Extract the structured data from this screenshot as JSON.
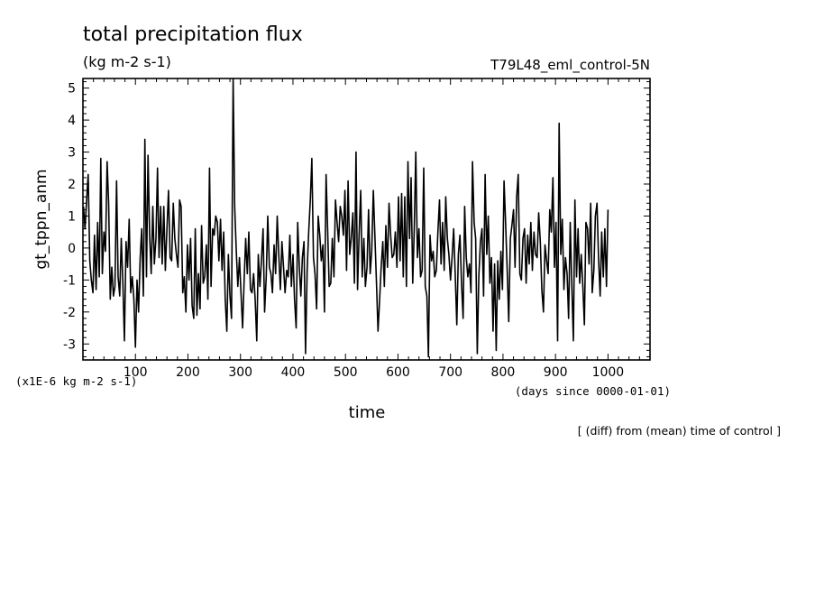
{
  "chart_data": {
    "type": "line",
    "title": "total precipitation flux",
    "units": "(kg m-2 s-1)",
    "case_label": "T79L48_eml_control-5N",
    "ylabel": "gt_tppn_anm",
    "xlabel": "time",
    "y_scale_note": "(x1E-6 kg m-2 s-1)",
    "x_units_note": "(days since 0000-01-01)",
    "footnote": "[ (diff) from (mean) time of control ]",
    "xlim": [
      0,
      1080
    ],
    "ylim": [
      -3.5,
      5.3
    ],
    "x_ticks": [
      100,
      200,
      300,
      400,
      500,
      600,
      700,
      800,
      900,
      1000
    ],
    "y_ticks": [
      -3,
      -2,
      -1,
      0,
      1,
      2,
      3,
      4,
      5
    ],
    "grid": false,
    "series": [
      {
        "color": "#000000",
        "x_start": 1,
        "x_step": 3,
        "values": [
          1.3,
          0.6,
          1.5,
          2.3,
          -0.4,
          -1.0,
          -1.4,
          0.4,
          -1.3,
          0.8,
          -0.9,
          2.8,
          -0.8,
          0.5,
          -0.1,
          2.7,
          1.4,
          -1.6,
          -0.6,
          -1.5,
          -1.2,
          2.1,
          -0.9,
          -1.5,
          0.3,
          -1.1,
          -2.9,
          0.2,
          -0.6,
          0.9,
          -1.4,
          -0.9,
          -1.6,
          -3.1,
          -1.0,
          -2.0,
          -0.3,
          0.6,
          -1.5,
          3.4,
          -0.9,
          2.9,
          0.4,
          -0.8,
          1.3,
          -0.5,
          0.3,
          2.5,
          -0.3,
          1.3,
          -0.5,
          1.3,
          -0.7,
          0.6,
          1.8,
          -0.3,
          -0.4,
          1.4,
          0.3,
          -0.2,
          -0.6,
          1.5,
          1.3,
          -1.4,
          -0.9,
          -2.0,
          0.1,
          -1.0,
          0.3,
          -1.8,
          -2.2,
          0.6,
          -2.1,
          -0.8,
          -1.9,
          0.7,
          -1.1,
          -0.9,
          0.1,
          -1.6,
          2.5,
          -1.2,
          0.6,
          0.4,
          1.0,
          0.8,
          -0.4,
          0.9,
          -0.7,
          0.5,
          -1.6,
          -2.6,
          -0.2,
          -1.5,
          -2.2,
          5.3,
          1.3,
          -0.1,
          -1.2,
          -0.3,
          -1.4,
          -2.5,
          -1.0,
          0.3,
          -0.8,
          0.5,
          -1.3,
          -1.4,
          -0.8,
          -1.6,
          -2.9,
          -0.2,
          -1.2,
          -0.4,
          0.6,
          -2.0,
          -0.9,
          1.0,
          -0.6,
          -0.8,
          -1.4,
          0.1,
          -0.8,
          1.0,
          -0.2,
          -1.3,
          0.2,
          -0.6,
          -1.4,
          -0.7,
          -0.9,
          0.4,
          -1.2,
          -0.2,
          -1.6,
          -2.5,
          0.8,
          -0.6,
          -1.5,
          -0.3,
          0.2,
          -3.3,
          -0.7,
          0.5,
          1.5,
          2.8,
          -0.3,
          -0.8,
          -1.9,
          1.0,
          0.4,
          -0.4,
          0.1,
          -2.0,
          2.3,
          0.6,
          -1.2,
          -1.1,
          0.3,
          -0.9,
          1.5,
          0.8,
          0.2,
          1.3,
          1.0,
          0.4,
          1.8,
          -0.7,
          2.1,
          -0.2,
          0.3,
          1.1,
          -1.1,
          3.0,
          -1.3,
          0.4,
          1.8,
          -0.9,
          0.3,
          -1.2,
          -0.6,
          1.2,
          -0.8,
          -0.1,
          1.8,
          0.4,
          -1.1,
          -2.6,
          -1.6,
          -0.6,
          0.2,
          -1.2,
          0.7,
          -0.6,
          1.4,
          0.4,
          -0.3,
          -0.2,
          0.5,
          -0.6,
          1.6,
          -0.4,
          1.7,
          -0.9,
          1.6,
          -1.2,
          2.7,
          0.3,
          2.2,
          -1.1,
          0.6,
          3.0,
          -0.3,
          0.6,
          -0.9,
          -0.7,
          2.5,
          -1.2,
          -1.5,
          -3.4,
          0.4,
          -0.4,
          -0.1,
          -0.9,
          -0.7,
          0.5,
          1.5,
          -0.5,
          0.8,
          -0.7,
          1.6,
          0.3,
          -0.2,
          -1.0,
          -0.3,
          0.6,
          -0.8,
          -2.4,
          -0.2,
          0.4,
          -1.1,
          -2.2,
          1.3,
          -0.3,
          -0.9,
          -0.5,
          -1.4,
          2.7,
          0.8,
          0.3,
          -3.3,
          -0.9,
          0.2,
          0.6,
          -1.5,
          2.3,
          -0.2,
          1.0,
          -1.1,
          -0.3,
          -2.6,
          -0.5,
          -3.2,
          -0.4,
          -1.6,
          -0.1,
          -1.3,
          2.1,
          0.8,
          -0.7,
          -2.3,
          0.3,
          0.7,
          1.2,
          -0.6,
          1.6,
          2.3,
          -0.8,
          -1.0,
          0.3,
          0.6,
          -1.1,
          0.4,
          -0.5,
          0.8,
          -0.7,
          0.5,
          -0.2,
          -0.3,
          1.1,
          0.2,
          -1.3,
          -2.0,
          0.1,
          -0.4,
          -0.8,
          1.2,
          0.5,
          2.2,
          -0.6,
          0.8,
          -2.9,
          3.9,
          -0.2,
          0.9,
          -1.3,
          -0.3,
          -0.8,
          -2.2,
          0.8,
          -1.1,
          -2.9,
          1.5,
          -0.9,
          0.6,
          -1.1,
          -0.2,
          -1.2,
          -2.4,
          0.8,
          0.6,
          -0.5,
          1.4,
          -1.4,
          -0.7,
          1.0,
          1.4,
          -0.3,
          -1.5,
          0.5,
          -0.9,
          0.6,
          -1.2,
          1.2
        ]
      }
    ]
  }
}
